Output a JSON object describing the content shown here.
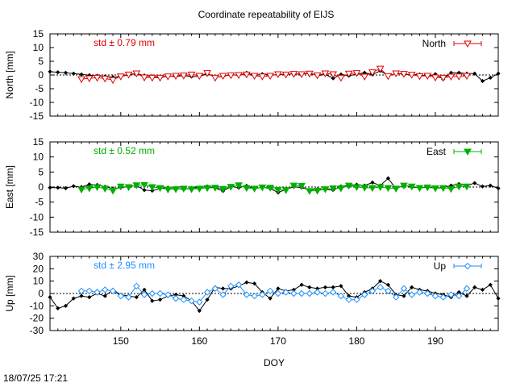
{
  "title": "Coordinate repeatability of EIJS",
  "timestamp": "18/07/25 17:21",
  "colors": {
    "north": "#e00000",
    "east": "#00b000",
    "up": "#1e90ff",
    "black": "#000000"
  },
  "chart_data": [
    {
      "type": "line",
      "panel": "north",
      "ylabel": "North [mm]",
      "ylim": [
        -15,
        15
      ],
      "yticks": [
        15,
        10,
        5,
        0,
        -5,
        -10,
        -15
      ],
      "xlim": [
        141,
        198
      ],
      "xticks": [
        150,
        160,
        170,
        180,
        190
      ],
      "std_label": "std ± 0.79 mm",
      "legend": "North",
      "legend_position": "top-right",
      "series": [
        {
          "name": "",
          "color": "#000000",
          "x": [
            141,
            142,
            143,
            144,
            145,
            146,
            147,
            148,
            149,
            150,
            151,
            152,
            153,
            154,
            155,
            156,
            157,
            158,
            159,
            160,
            161,
            162,
            163,
            164,
            165,
            166,
            167,
            168,
            169,
            170,
            171,
            172,
            173,
            174,
            175,
            176,
            177,
            178,
            179,
            180,
            181,
            182,
            183,
            184,
            185,
            186,
            187,
            188,
            189,
            190,
            191,
            192,
            193,
            194,
            195,
            196,
            197,
            198
          ],
          "y": [
            1.2,
            1.0,
            0.8,
            0.5,
            0.2,
            -0.1,
            -0.3,
            -0.5,
            -0.8,
            -0.5,
            0.0,
            0.5,
            -0.2,
            -0.5,
            -0.8,
            -0.4,
            -0.6,
            -0.2,
            -0.6,
            -0.5,
            0.4,
            -0.7,
            -0.6,
            0.2,
            -0.2,
            0.8,
            -0.2,
            0.3,
            0.0,
            0.1,
            0.2,
            0.5,
            0.2,
            0.8,
            -0.3,
            0.2,
            -1.2,
            0.2,
            -0.3,
            0.3,
            0.8,
            0.2,
            1.5,
            -0.2,
            0.5,
            0.3,
            0.0,
            0.2,
            -0.5,
            0.3,
            -1.5,
            0.8,
            0.8,
            0.5,
            0.5,
            -2.2,
            -1.0,
            0.5
          ]
        },
        {
          "name": "North",
          "color": "#e00000",
          "x": [
            145,
            146,
            147,
            148,
            149,
            150,
            151,
            152,
            153,
            154,
            155,
            156,
            157,
            158,
            159,
            160,
            161,
            162,
            163,
            164,
            165,
            166,
            167,
            168,
            169,
            170,
            171,
            172,
            173,
            174,
            175,
            176,
            177,
            178,
            179,
            180,
            181,
            182,
            183,
            184,
            185,
            186,
            187,
            188,
            189,
            190,
            191,
            192,
            193,
            194
          ],
          "y": [
            -1.5,
            -1.2,
            -1.0,
            -1.3,
            -1.8,
            -0.5,
            0.2,
            0.6,
            -0.9,
            -1.0,
            -1.0,
            -0.5,
            -0.3,
            -0.2,
            0.2,
            -0.3,
            0.7,
            -1.0,
            -0.3,
            -0.1,
            0.0,
            0.2,
            -0.3,
            -0.5,
            -0.3,
            0.3,
            0.2,
            0.4,
            0.3,
            0.5,
            -0.1,
            0.6,
            0.3,
            -1.0,
            0.5,
            0.7,
            -0.6,
            1.0,
            2.3,
            -0.4,
            0.6,
            0.4,
            0.1,
            -0.4,
            -0.3,
            -0.9,
            -1.0,
            -0.6,
            -0.5,
            -0.3
          ]
        }
      ]
    },
    {
      "type": "line",
      "panel": "east",
      "ylabel": "East [mm]",
      "ylim": [
        -15,
        15
      ],
      "yticks": [
        15,
        10,
        5,
        0,
        -5,
        -10,
        -15
      ],
      "xlim": [
        141,
        198
      ],
      "xticks": [
        150,
        160,
        170,
        180,
        190
      ],
      "std_label": "std ± 0.52 mm",
      "legend": "East",
      "legend_position": "top-right",
      "series": [
        {
          "name": "",
          "color": "#000000",
          "x": [
            141,
            142,
            143,
            144,
            145,
            146,
            147,
            148,
            149,
            150,
            151,
            152,
            153,
            154,
            155,
            156,
            157,
            158,
            159,
            160,
            161,
            162,
            163,
            164,
            165,
            166,
            167,
            168,
            169,
            170,
            171,
            172,
            173,
            174,
            175,
            176,
            177,
            178,
            179,
            180,
            181,
            182,
            183,
            184,
            185,
            186,
            187,
            188,
            189,
            190,
            191,
            192,
            193,
            194,
            195,
            196,
            197,
            198
          ],
          "y": [
            -0.2,
            -0.2,
            -0.4,
            0.3,
            0.0,
            0.9,
            0.7,
            0.1,
            -0.5,
            -0.2,
            0.2,
            0.5,
            -1.0,
            -1.2,
            -0.5,
            -0.2,
            -0.4,
            -0.8,
            -0.3,
            -0.2,
            0.2,
            -0.3,
            -1.3,
            0.2,
            -0.2,
            0.4,
            -0.6,
            0.0,
            -0.5,
            -1.8,
            -0.8,
            0.1,
            -0.2,
            -1.0,
            -0.7,
            -0.8,
            -1.0,
            0.2,
            0.5,
            0.8,
            0.5,
            1.5,
            0.5,
            2.9,
            -0.6,
            0.7,
            -0.1,
            -0.2,
            0.0,
            -0.4,
            -0.1,
            0.5,
            1.0,
            0.5,
            1.3,
            0.2,
            0.5,
            -0.4
          ]
        },
        {
          "name": "East",
          "color": "#00b000",
          "x": [
            145,
            146,
            147,
            148,
            149,
            150,
            151,
            152,
            153,
            154,
            155,
            156,
            157,
            158,
            159,
            160,
            161,
            162,
            163,
            164,
            165,
            166,
            167,
            168,
            169,
            170,
            171,
            172,
            173,
            174,
            175,
            176,
            177,
            178,
            179,
            180,
            181,
            182,
            183,
            184,
            185,
            186,
            187,
            188,
            189,
            190,
            191,
            192,
            193,
            194
          ],
          "y": [
            -0.8,
            -0.4,
            0.0,
            -0.5,
            -1.2,
            0.2,
            0.0,
            0.6,
            0.7,
            0.0,
            -0.3,
            -0.8,
            -0.7,
            -0.5,
            -0.7,
            -0.5,
            -0.3,
            -0.2,
            -0.6,
            0.1,
            0.6,
            -0.3,
            -0.5,
            -0.1,
            -0.2,
            -0.9,
            -1.0,
            0.5,
            0.4,
            -1.3,
            -1.2,
            -0.7,
            -0.4,
            -0.4,
            0.5,
            0.0,
            -0.2,
            -0.3,
            0.0,
            -0.3,
            -0.5,
            0.5,
            0.2,
            -0.3,
            -0.1,
            -0.4,
            -0.3,
            -0.6,
            0.2,
            0.2
          ]
        }
      ]
    },
    {
      "type": "line",
      "panel": "up",
      "ylabel": "Up [mm]",
      "ylim": [
        -30,
        30
      ],
      "yticks": [
        30,
        20,
        10,
        0,
        -10,
        -20,
        -30
      ],
      "xlim": [
        141,
        198
      ],
      "xticks": [
        150,
        160,
        170,
        180,
        190
      ],
      "xlabel": "DOY",
      "std_label": "std ± 2.95 mm",
      "legend": "Up",
      "legend_position": "top-right",
      "series": [
        {
          "name": "",
          "color": "#000000",
          "x": [
            141,
            142,
            143,
            144,
            145,
            146,
            147,
            148,
            149,
            150,
            151,
            152,
            153,
            154,
            155,
            156,
            157,
            158,
            159,
            160,
            161,
            162,
            163,
            164,
            165,
            166,
            167,
            168,
            169,
            170,
            171,
            172,
            173,
            174,
            175,
            176,
            177,
            178,
            179,
            180,
            181,
            182,
            183,
            184,
            185,
            186,
            187,
            188,
            189,
            190,
            191,
            192,
            193,
            194,
            195,
            196,
            197,
            198
          ],
          "y": [
            -3,
            -12,
            -10,
            -4,
            -2,
            -3,
            0,
            -2,
            3,
            -1,
            -2,
            -3,
            3,
            -6,
            -5,
            -2,
            -1,
            -2,
            -6,
            -14,
            -5,
            5,
            4,
            4,
            6,
            9,
            8,
            1,
            -4,
            4,
            2,
            3,
            7,
            5,
            4,
            5,
            5,
            6,
            -2,
            -3,
            1,
            4,
            10,
            7,
            -1,
            -2,
            5,
            3,
            2,
            0,
            -1,
            -3,
            1,
            -2,
            5,
            3,
            7,
            -4
          ]
        },
        {
          "name": "Up",
          "color": "#1e90ff",
          "x": [
            145,
            146,
            147,
            148,
            149,
            150,
            151,
            152,
            153,
            154,
            155,
            156,
            157,
            158,
            159,
            160,
            161,
            162,
            163,
            164,
            165,
            166,
            167,
            168,
            169,
            170,
            171,
            172,
            173,
            174,
            175,
            176,
            177,
            178,
            179,
            180,
            181,
            182,
            183,
            184,
            185,
            186,
            187,
            188,
            189,
            190,
            191,
            192,
            193,
            194
          ],
          "y": [
            2,
            2,
            1,
            3,
            2,
            -2,
            -3,
            6,
            -1,
            0,
            0,
            -1,
            -4,
            -5,
            -6,
            -7,
            1,
            4,
            -1,
            6,
            7,
            -1,
            -2,
            -1,
            2,
            0,
            1,
            0,
            0,
            0,
            1,
            0,
            1,
            -2,
            -5,
            -5,
            -1,
            2,
            5,
            2,
            -3,
            4,
            -1,
            1,
            0,
            -2,
            -3,
            -1,
            -2,
            4
          ]
        }
      ]
    }
  ]
}
